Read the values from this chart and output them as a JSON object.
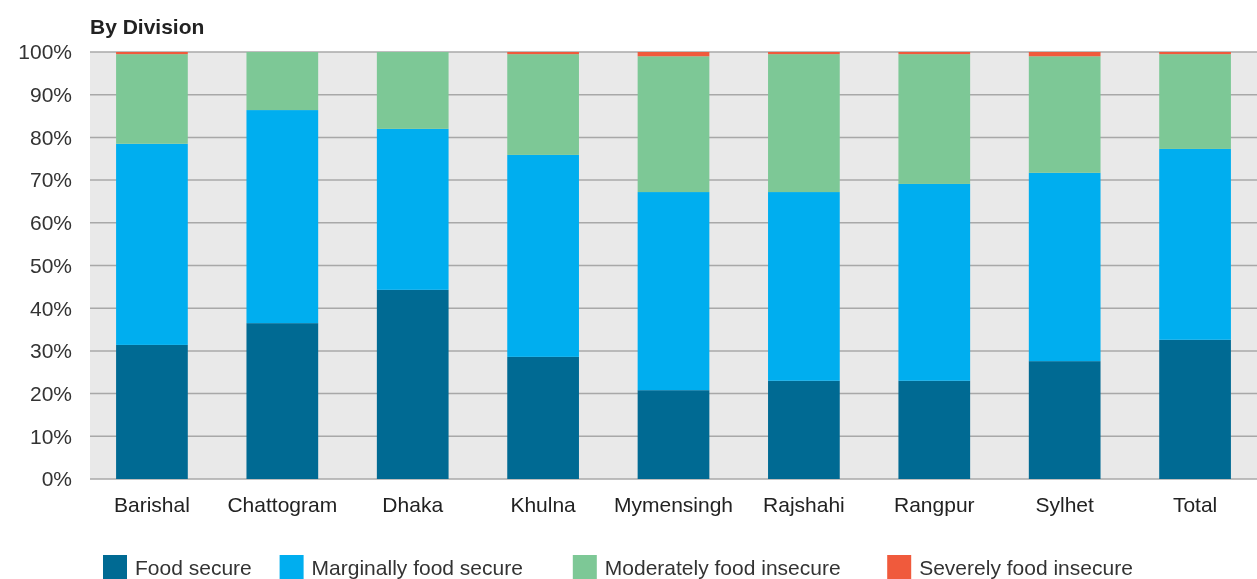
{
  "chart_data": {
    "type": "bar",
    "title": "By Division",
    "stacked": true,
    "categories": [
      "Barishal",
      "Chattogram",
      "Dhaka",
      "Khulna",
      "Mymensingh",
      "Rajshahi",
      "Rangpur",
      "Sylhet",
      "Total"
    ],
    "series": [
      {
        "name": "Food secure",
        "color": "#006a93",
        "values": [
          31.4,
          36.5,
          44.3,
          28.6,
          20.8,
          23,
          23,
          27.6,
          32.6
        ]
      },
      {
        "name": "Marginally food secure",
        "color": "#00aeef",
        "values": [
          47.1,
          49.9,
          37.7,
          47.3,
          46.4,
          44.2,
          46.1,
          44.1,
          44.7
        ]
      },
      {
        "name": "Moderately food insecure",
        "color": "#7dc896",
        "values": [
          21,
          13.6,
          18,
          23.6,
          31.8,
          32.3,
          30.4,
          27.3,
          22.2
        ]
      },
      {
        "name": "Severely food insecure",
        "color": "#f05a3c",
        "values": [
          0.5,
          0,
          0,
          0.5,
          1,
          0.5,
          0.5,
          1,
          0.5
        ]
      }
    ],
    "ylim": [
      0,
      100
    ],
    "yticks": [
      {
        "value": 0,
        "label": "0%"
      },
      {
        "value": 10,
        "label": "10%"
      },
      {
        "value": 20,
        "label": "20%"
      },
      {
        "value": 30,
        "label": "30%"
      },
      {
        "value": 40,
        "label": "40%"
      },
      {
        "value": 50,
        "label": "50%"
      },
      {
        "value": 60,
        "label": "60%"
      },
      {
        "value": 70,
        "label": "70%"
      },
      {
        "value": 80,
        "label": "80%"
      },
      {
        "value": 90,
        "label": "90%"
      },
      {
        "value": 100,
        "label": "100%"
      }
    ],
    "grid": "y",
    "legend": "bottom"
  }
}
